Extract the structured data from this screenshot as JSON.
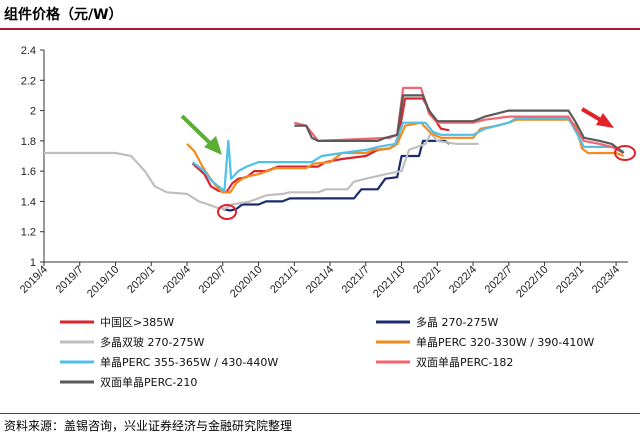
{
  "page": {
    "title": "组件价格（元/W）",
    "source": "资料来源：盖锡咨询，兴业证券经济与金融研究院整理"
  },
  "chart_data": {
    "type": "line",
    "ylim": [
      1,
      2.4
    ],
    "yticks": [
      "1",
      "1.2",
      "1.4",
      "1.6",
      "1.8",
      "2",
      "2.2",
      "2.4"
    ],
    "xlim": [
      "2019-04",
      "2023-05"
    ],
    "xticks": [
      "2019/4",
      "2019/7",
      "2019/10",
      "2020/1",
      "2020/4",
      "2020/7",
      "2020/10",
      "2021/1",
      "2021/4",
      "2021/7",
      "2021/10",
      "2022/1",
      "2022/4",
      "2022/7",
      "2022/10",
      "2023/1",
      "2023/4"
    ],
    "grid": false,
    "legend_position": "bottom",
    "series": [
      {
        "name": "中国区>385W",
        "color": "#d9262e",
        "points": [
          [
            "2020-04-15",
            1.65
          ],
          [
            "2020-05-15",
            1.58
          ],
          [
            "2020-06-01",
            1.5
          ],
          [
            "2020-06-20",
            1.47
          ],
          [
            "2020-07-10",
            1.46
          ],
          [
            "2020-07-25",
            1.52
          ],
          [
            "2020-08-10",
            1.55
          ],
          [
            "2020-09-01",
            1.56
          ],
          [
            "2020-09-20",
            1.6
          ],
          [
            "2020-10-20",
            1.6
          ],
          [
            "2020-11-20",
            1.63
          ],
          [
            "2021-01-01",
            1.63
          ],
          [
            "2021-03-01",
            1.63
          ],
          [
            "2021-03-20",
            1.66
          ],
          [
            "2021-05-01",
            1.68
          ],
          [
            "2021-07-01",
            1.7
          ],
          [
            "2021-08-01",
            1.74
          ],
          [
            "2021-09-01",
            1.75
          ],
          [
            "2021-09-20",
            1.78
          ],
          [
            "2021-10-10",
            2.08
          ],
          [
            "2021-11-25",
            2.08
          ],
          [
            "2021-12-15",
            1.98
          ],
          [
            "2022-01-10",
            1.88
          ],
          [
            "2022-02-01",
            1.87
          ]
        ]
      },
      {
        "name": "多晶 270-275W",
        "color": "#1b2c6e",
        "points": [
          [
            "2020-07-01",
            1.35
          ],
          [
            "2020-07-20",
            1.34
          ],
          [
            "2020-08-05",
            1.35
          ],
          [
            "2020-08-20",
            1.38
          ],
          [
            "2020-10-01",
            1.38
          ],
          [
            "2020-10-20",
            1.4
          ],
          [
            "2020-12-01",
            1.4
          ],
          [
            "2020-12-20",
            1.42
          ],
          [
            "2021-06-01",
            1.42
          ],
          [
            "2021-06-20",
            1.48
          ],
          [
            "2021-08-01",
            1.48
          ],
          [
            "2021-08-20",
            1.55
          ],
          [
            "2021-09-20",
            1.56
          ],
          [
            "2021-10-01",
            1.7
          ],
          [
            "2021-11-15",
            1.7
          ],
          [
            "2021-11-25",
            1.8
          ],
          [
            "2022-01-20",
            1.8
          ],
          [
            "2022-02-01",
            1.78
          ]
        ]
      },
      {
        "name": "多晶双玻 270-275W",
        "color": "#bfbfbf",
        "points": [
          [
            "2019-04-01",
            1.72
          ],
          [
            "2019-07-01",
            1.72
          ],
          [
            "2019-10-01",
            1.72
          ],
          [
            "2019-11-10",
            1.7
          ],
          [
            "2019-12-15",
            1.6
          ],
          [
            "2020-01-10",
            1.5
          ],
          [
            "2020-02-10",
            1.46
          ],
          [
            "2020-04-01",
            1.45
          ],
          [
            "2020-05-01",
            1.4
          ],
          [
            "2020-05-25",
            1.38
          ],
          [
            "2020-06-15",
            1.36
          ],
          [
            "2020-07-05",
            1.35
          ],
          [
            "2020-07-25",
            1.38
          ],
          [
            "2020-09-10",
            1.4
          ],
          [
            "2020-10-20",
            1.44
          ],
          [
            "2020-12-01",
            1.45
          ],
          [
            "2020-12-20",
            1.46
          ],
          [
            "2021-03-01",
            1.46
          ],
          [
            "2021-03-20",
            1.48
          ],
          [
            "2021-05-15",
            1.48
          ],
          [
            "2021-06-01",
            1.53
          ],
          [
            "2021-07-01",
            1.55
          ],
          [
            "2021-08-20",
            1.58
          ],
          [
            "2021-10-01",
            1.6
          ],
          [
            "2021-10-20",
            1.74
          ],
          [
            "2021-12-01",
            1.78
          ],
          [
            "2021-12-15",
            1.85
          ],
          [
            "2022-01-01",
            1.8
          ],
          [
            "2022-02-20",
            1.78
          ],
          [
            "2022-04-15",
            1.78
          ]
        ]
      },
      {
        "name": "单晶PERC 320-330W / 390-410W",
        "color": "#f28a1e",
        "points": [
          [
            "2020-04-01",
            1.78
          ],
          [
            "2020-04-20",
            1.73
          ],
          [
            "2020-05-10",
            1.63
          ],
          [
            "2020-05-30",
            1.55
          ],
          [
            "2020-06-15",
            1.5
          ],
          [
            "2020-06-30",
            1.46
          ],
          [
            "2020-07-20",
            1.46
          ],
          [
            "2020-08-05",
            1.52
          ],
          [
            "2020-08-25",
            1.56
          ],
          [
            "2020-10-01",
            1.58
          ],
          [
            "2020-11-15",
            1.62
          ],
          [
            "2021-01-01",
            1.62
          ],
          [
            "2021-02-01",
            1.62
          ],
          [
            "2021-02-20",
            1.65
          ],
          [
            "2021-04-01",
            1.66
          ],
          [
            "2021-05-01",
            1.72
          ],
          [
            "2021-07-01",
            1.72
          ],
          [
            "2021-07-20",
            1.74
          ],
          [
            "2021-09-01",
            1.75
          ],
          [
            "2021-09-20",
            1.78
          ],
          [
            "2021-10-10",
            1.9
          ],
          [
            "2021-11-20",
            1.92
          ],
          [
            "2021-12-15",
            1.85
          ],
          [
            "2022-01-10",
            1.82
          ],
          [
            "2022-04-01",
            1.82
          ],
          [
            "2022-04-20",
            1.88
          ],
          [
            "2022-06-01",
            1.9
          ],
          [
            "2022-07-01",
            1.92
          ],
          [
            "2022-07-20",
            1.94
          ],
          [
            "2022-12-01",
            1.94
          ],
          [
            "2022-12-20",
            1.9
          ],
          [
            "2023-01-05",
            1.75
          ],
          [
            "2023-01-20",
            1.72
          ],
          [
            "2023-04-01",
            1.72
          ],
          [
            "2023-04-20",
            1.7
          ]
        ]
      },
      {
        "name": "单晶PERC 355-365W / 430-440W",
        "color": "#4fc0ea",
        "points": [
          [
            "2020-04-15",
            1.66
          ],
          [
            "2020-05-15",
            1.6
          ],
          [
            "2020-06-01",
            1.54
          ],
          [
            "2020-06-20",
            1.5
          ],
          [
            "2020-07-05",
            1.47
          ],
          [
            "2020-07-15",
            1.8
          ],
          [
            "2020-07-22",
            1.55
          ],
          [
            "2020-08-10",
            1.6
          ],
          [
            "2020-09-01",
            1.63
          ],
          [
            "2020-10-01",
            1.66
          ],
          [
            "2021-01-01",
            1.66
          ],
          [
            "2021-02-15",
            1.66
          ],
          [
            "2021-03-10",
            1.7
          ],
          [
            "2021-05-01",
            1.72
          ],
          [
            "2021-07-01",
            1.74
          ],
          [
            "2021-08-01",
            1.76
          ],
          [
            "2021-09-15",
            1.78
          ],
          [
            "2021-10-05",
            1.92
          ],
          [
            "2021-12-01",
            1.92
          ],
          [
            "2021-12-20",
            1.86
          ],
          [
            "2022-01-10",
            1.84
          ],
          [
            "2022-04-01",
            1.84
          ],
          [
            "2022-05-01",
            1.88
          ],
          [
            "2022-07-01",
            1.92
          ],
          [
            "2022-07-20",
            1.95
          ],
          [
            "2022-12-01",
            1.95
          ],
          [
            "2022-12-20",
            1.86
          ],
          [
            "2023-01-10",
            1.76
          ],
          [
            "2023-03-20",
            1.76
          ],
          [
            "2023-04-20",
            1.73
          ]
        ]
      },
      {
        "name": "双面单晶PERC-182",
        "color": "#f0666c",
        "points": [
          [
            "2021-01-01",
            1.92
          ],
          [
            "2021-02-01",
            1.9
          ],
          [
            "2021-03-01",
            1.8
          ],
          [
            "2021-09-01",
            1.82
          ],
          [
            "2021-09-20",
            1.84
          ],
          [
            "2021-10-05",
            2.15
          ],
          [
            "2021-11-20",
            2.15
          ],
          [
            "2021-12-10",
            1.98
          ],
          [
            "2022-01-01",
            1.92
          ],
          [
            "2022-04-01",
            1.92
          ],
          [
            "2022-05-01",
            1.94
          ],
          [
            "2022-07-01",
            1.96
          ],
          [
            "2022-12-01",
            1.96
          ],
          [
            "2022-12-20",
            1.88
          ],
          [
            "2023-01-10",
            1.8
          ],
          [
            "2023-02-20",
            1.78
          ],
          [
            "2023-03-20",
            1.76
          ],
          [
            "2023-04-20",
            1.72
          ]
        ]
      },
      {
        "name": "双面单晶PERC-210",
        "color": "#595959",
        "points": [
          [
            "2021-01-01",
            1.9
          ],
          [
            "2021-02-01",
            1.9
          ],
          [
            "2021-02-15",
            1.82
          ],
          [
            "2021-03-01",
            1.8
          ],
          [
            "2021-08-01",
            1.8
          ],
          [
            "2021-08-20",
            1.82
          ],
          [
            "2021-09-20",
            1.84
          ],
          [
            "2021-10-05",
            2.1
          ],
          [
            "2021-11-25",
            2.1
          ],
          [
            "2021-12-10",
            2.0
          ],
          [
            "2022-01-01",
            1.93
          ],
          [
            "2022-04-01",
            1.93
          ],
          [
            "2022-05-01",
            1.96
          ],
          [
            "2022-06-01",
            1.98
          ],
          [
            "2022-07-01",
            2.0
          ],
          [
            "2022-12-01",
            2.0
          ],
          [
            "2022-12-20",
            1.92
          ],
          [
            "2023-01-10",
            1.82
          ],
          [
            "2023-02-20",
            1.8
          ],
          [
            "2023-03-20",
            1.78
          ],
          [
            "2023-04-20",
            1.72
          ]
        ]
      }
    ]
  }
}
